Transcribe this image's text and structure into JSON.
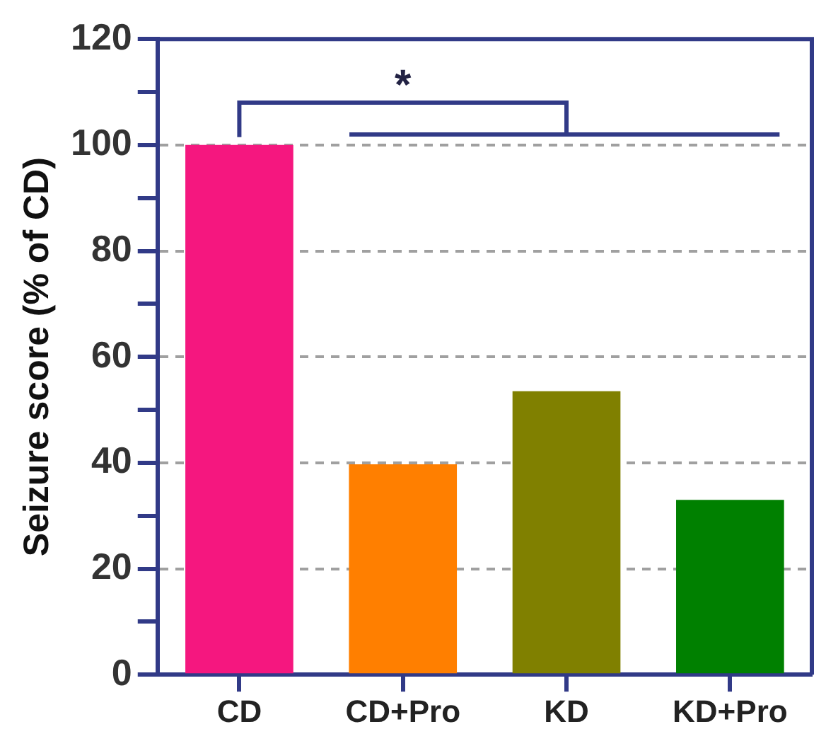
{
  "chart_data": {
    "type": "bar",
    "ylabel": "Seizure score (% of CD)",
    "categories": [
      "CD",
      "CD+Pro",
      "KD",
      "KD+Pro"
    ],
    "values": [
      100,
      39.7,
      53.5,
      33
    ],
    "colors": [
      "#f5177f",
      "#ff7f00",
      "#808000",
      "#008000"
    ],
    "ylim": [
      0,
      120
    ],
    "yticks": [
      0,
      {
        "value": 10,
        "label": null
      },
      20,
      {
        "value": 30,
        "label": null
      },
      40,
      {
        "value": 50,
        "label": null
      },
      60,
      {
        "value": 70,
        "label": null
      },
      80,
      {
        "value": 90,
        "label": null
      },
      100,
      {
        "value": 110,
        "label": null
      },
      120
    ],
    "grid": "y",
    "legend": false,
    "annotations": [
      "*"
    ]
  }
}
